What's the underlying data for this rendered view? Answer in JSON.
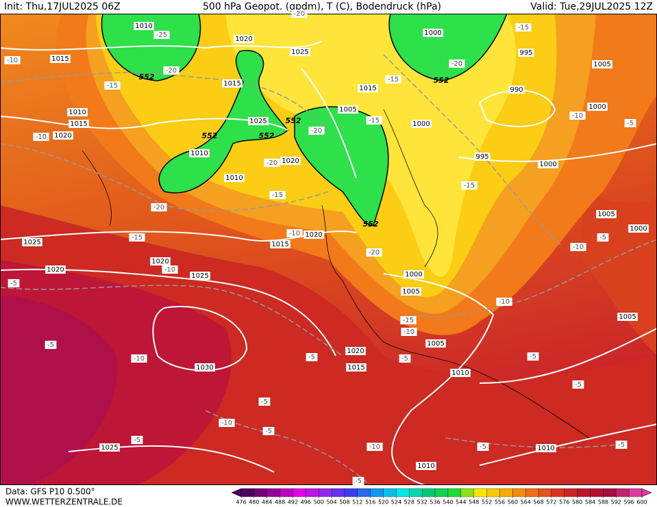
{
  "header": {
    "init": "Init: Thu,17JUL2025 06Z",
    "title": "500 hPa Geopot. (gpdm), T (C), Bodendruck (hPa)",
    "valid": "Valid: Tue,29JUL2025 12Z"
  },
  "footer": {
    "data": "Data: GFS P10 0.500°",
    "site": "WWW.WETTERZENTRALE.DE"
  },
  "colorbar": {
    "ticks": [
      476,
      480,
      484,
      488,
      492,
      496,
      500,
      504,
      508,
      512,
      516,
      520,
      524,
      528,
      532,
      536,
      540,
      544,
      548,
      552,
      556,
      560,
      564,
      568,
      572,
      576,
      580,
      584,
      588,
      592,
      596,
      600
    ]
  },
  "pressure_labels": [
    "1010",
    "1020",
    "1025",
    "1000",
    "995",
    "1005",
    "1015",
    "990",
    "1015",
    "1015",
    "1005",
    "1000",
    "1010",
    "1015",
    "1025",
    "1000",
    "1020",
    "1010",
    "995",
    "1020",
    "1000",
    "1010",
    "1005",
    "1000",
    "1025",
    "1015",
    "1020",
    "1020",
    "1020",
    "1025",
    "1000",
    "1005",
    "1005",
    "1005",
    "1020",
    "1015",
    "1030",
    "1010",
    "1025",
    "1010",
    "1010"
  ],
  "temperature_labels": [
    "-20",
    "-25",
    "-20",
    "-10",
    "-15",
    "-20",
    "-15",
    "-15",
    "-15",
    "-20",
    "-20",
    "-10",
    "-10",
    "-5",
    "-20",
    "-15",
    "-15",
    "-15",
    "-10",
    "-20",
    "-10",
    "-5",
    "-10",
    "-5",
    "-10",
    "-15",
    "-10",
    "-5",
    "-10",
    "-5",
    "-5",
    "-5",
    "-5",
    "-5",
    "-10",
    "-5",
    "-5",
    "-10",
    "-5",
    "-5",
    "-5"
  ],
  "height_labels": [
    "552",
    "552",
    "552",
    "552",
    "552",
    "552"
  ]
}
